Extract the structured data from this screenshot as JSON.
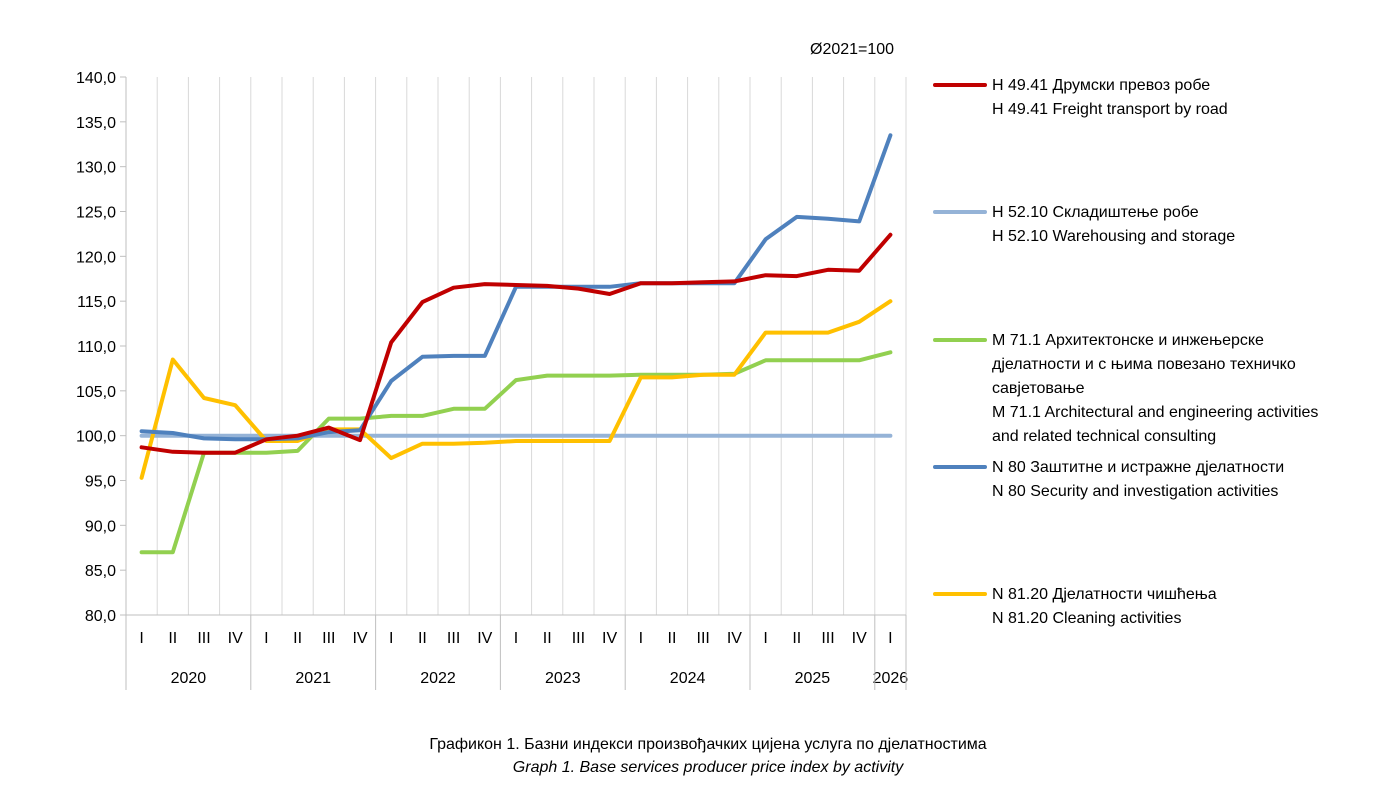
{
  "chart_data": {
    "type": "line",
    "base_note": "Ø2021=100",
    "ylim": [
      80,
      140
    ],
    "y_ticks": [
      "80,0",
      "85,0",
      "90,0",
      "95,0",
      "100,0",
      "105,0",
      "110,0",
      "115,0",
      "120,0",
      "125,0",
      "130,0",
      "135,0",
      "140,0"
    ],
    "quarters": [
      "I",
      "II",
      "III",
      "IV",
      "I",
      "II",
      "III",
      "IV",
      "I",
      "II",
      "III",
      "IV",
      "I",
      "II",
      "III",
      "IV",
      "I",
      "II",
      "III",
      "IV",
      "I",
      "II",
      "III",
      "IV",
      "I"
    ],
    "years": [
      "2020",
      "2021",
      "2022",
      "2023",
      "2024",
      "2025",
      "2026"
    ],
    "grid": "vertical",
    "legend_position": "right",
    "series": [
      {
        "name_line1": "H 49.41 Друмски превоз робе",
        "name_line2": "H 49.41 Freight transport by road",
        "color": "#C00000",
        "values": [
          98.7,
          98.2,
          98.1,
          98.1,
          99.6,
          100.0,
          100.9,
          99.5,
          110.4,
          114.9,
          116.5,
          116.9,
          116.8,
          116.7,
          116.4,
          115.8,
          117.0,
          117.0,
          117.1,
          117.2,
          117.9,
          117.8,
          118.5,
          118.4,
          122.4
        ]
      },
      {
        "name_line1": "H 52.10 Складиштење робе",
        "name_line2": "H 52.10 Warehousing and storage",
        "color": "#95B3D7",
        "values": [
          100.0,
          100.0,
          100.0,
          100.0,
          100.0,
          100.0,
          100.0,
          100.0,
          100.0,
          100.0,
          100.0,
          100.0,
          100.0,
          100.0,
          100.0,
          100.0,
          100.0,
          100.0,
          100.0,
          100.0,
          100.0,
          100.0,
          100.0,
          100.0,
          100.0
        ]
      },
      {
        "name_line1": "M 71.1 Архитектонске и инжењерске",
        "name_line2": "дјелатности и с њима повезано техничко",
        "name_line3": "савјетовање",
        "name_line4": "M 71.1 Architectural and engineering activities",
        "name_line5": "and related technical consulting",
        "color": "#92D050",
        "values": [
          87.0,
          87.0,
          98.1,
          98.1,
          98.1,
          98.3,
          101.9,
          101.9,
          102.2,
          102.2,
          103.0,
          103.0,
          106.2,
          106.7,
          106.7,
          106.7,
          106.8,
          106.8,
          106.8,
          106.9,
          108.4,
          108.4,
          108.4,
          108.4,
          109.3
        ]
      },
      {
        "name_line1": "N 80 Заштитне и истражне дјелатности",
        "name_line2": "N 80 Security and investigation activities",
        "color": "#4F81BD",
        "values": [
          100.5,
          100.3,
          99.7,
          99.6,
          99.6,
          99.7,
          100.4,
          100.6,
          106.1,
          108.8,
          108.9,
          108.9,
          116.6,
          116.6,
          116.6,
          116.6,
          117.0,
          117.0,
          117.0,
          117.0,
          121.9,
          124.4,
          124.2,
          123.9,
          133.5
        ]
      },
      {
        "name_line1": "N 81.20 Дјелатности чишћења",
        "name_line2": "N 81.20 Cleaning activities",
        "color": "#FFC000",
        "values": [
          95.3,
          108.5,
          104.2,
          103.4,
          99.4,
          99.4,
          100.7,
          100.7,
          97.5,
          99.1,
          99.1,
          99.2,
          99.4,
          99.4,
          99.4,
          99.4,
          106.5,
          106.5,
          106.8,
          106.8,
          111.5,
          111.5,
          111.5,
          112.7,
          115.0
        ]
      }
    ],
    "caption_line1": "Графикон 1. Базни индекси произвођачких цијена услуга по дјелатностима",
    "caption_line2": "Graph 1. Base services producer price index by activity"
  }
}
